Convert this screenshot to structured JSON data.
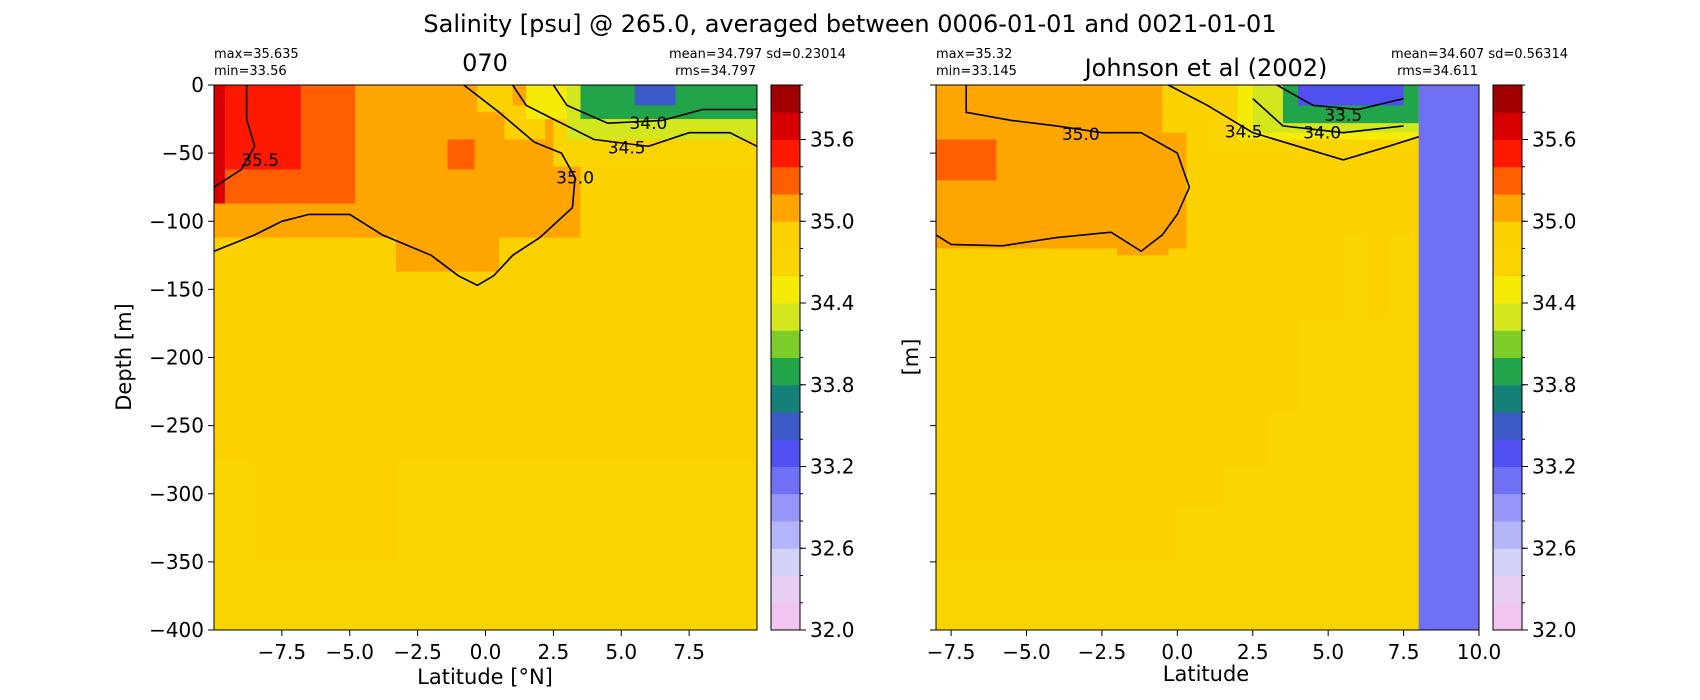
{
  "figure": {
    "suptitle": "Salinity [psu] @ 265.0, averaged between 0006-01-01 and 0021-01-01"
  },
  "colorbar": {
    "levels": [
      32.0,
      32.2,
      32.4,
      32.6,
      32.8,
      33.0,
      33.2,
      33.4,
      33.6,
      33.8,
      34.0,
      34.2,
      34.4,
      34.6,
      34.8,
      35.0,
      35.2,
      35.4,
      35.6,
      35.8,
      36.0
    ],
    "colors": [
      "#f2c4f2",
      "#e6cff2",
      "#d2d2f8",
      "#b4b4f8",
      "#9696f8",
      "#7070f5",
      "#5050f0",
      "#3c5ac8",
      "#148078",
      "#21a44a",
      "#7ccd29",
      "#d3e61e",
      "#f5eb05",
      "#fad400",
      "#fbd100",
      "#ffa500",
      "#ff5f00",
      "#ff1800",
      "#d80000",
      "#a00000",
      "#6e0000"
    ],
    "tick_labels": [
      "32.0",
      "32.6",
      "33.2",
      "33.8",
      "34.4",
      "35.0",
      "35.6"
    ],
    "tick_values": [
      32.0,
      32.6,
      33.2,
      33.8,
      34.4,
      35.0,
      35.6
    ]
  },
  "chart_data": [
    {
      "type": "heatmap",
      "title": "070",
      "stats_left": [
        "max=35.635",
        "min=33.56"
      ],
      "stats_right": [
        "mean=34.797 sd=0.23014",
        "rms=34.797"
      ],
      "xlabel": "Latitude [°N]",
      "ylabel": "Depth [m]",
      "xlim": [
        -10.0,
        10.0
      ],
      "ylim": [
        -400,
        0
      ],
      "x_ticks": [
        -7.5,
        -5.0,
        -2.5,
        0.0,
        2.5,
        5.0,
        7.5
      ],
      "x_tick_labels": [
        "−7.5",
        "−5.0",
        "−2.5",
        "0.0",
        "2.5",
        "5.0",
        "7.5"
      ],
      "y_ticks": [
        0,
        -50,
        -100,
        -150,
        -200,
        -250,
        -300,
        -350,
        -400
      ],
      "y_tick_labels": [
        "0",
        "−50",
        "−100",
        "−150",
        "−200",
        "−250",
        "−300",
        "−350",
        "−400"
      ],
      "background_value": 34.7,
      "regions": [
        {
          "x": [
            -10.0,
            10.0
          ],
          "y": [
            -275,
            0
          ],
          "value": 34.9
        },
        {
          "x": [
            -8.5,
            -3.3
          ],
          "y": [
            -350,
            -275
          ],
          "value": 34.9
        },
        {
          "x": [
            -10.0,
            3.5
          ],
          "y": [
            -112,
            0
          ],
          "value": 35.1
        },
        {
          "x": [
            -3.3,
            0.5
          ],
          "y": [
            -137,
            -112
          ],
          "value": 35.1
        },
        {
          "x": [
            -0.3,
            1.0
          ],
          "y": [
            -20,
            0
          ],
          "value": 34.9
        },
        {
          "x": [
            0.7,
            2.2
          ],
          "y": [
            -40,
            -15
          ],
          "value": 34.9
        },
        {
          "x": [
            -10.0,
            -4.8
          ],
          "y": [
            -87,
            0
          ],
          "value": 35.3
        },
        {
          "x": [
            -1.4,
            -0.4
          ],
          "y": [
            -62,
            -40
          ],
          "value": 35.3
        },
        {
          "x": [
            -10.0,
            -6.8
          ],
          "y": [
            -62,
            0
          ],
          "value": 35.5
        },
        {
          "x": [
            -10.0,
            -9.6
          ],
          "y": [
            -87,
            0
          ],
          "value": 35.7
        },
        {
          "x": [
            2.5,
            10.0
          ],
          "y": [
            -60,
            0
          ],
          "value": 34.7
        },
        {
          "x": [
            1.5,
            3.0
          ],
          "y": [
            -25,
            0
          ],
          "value": 34.5
        },
        {
          "x": [
            3.0,
            10.0
          ],
          "y": [
            -40,
            0
          ],
          "value": 34.2
        },
        {
          "x": [
            3.5,
            10.0
          ],
          "y": [
            -25,
            0
          ],
          "value": 33.9
        },
        {
          "x": [
            5.5,
            7.0
          ],
          "y": [
            -15,
            0
          ],
          "value": 33.5
        }
      ],
      "contours": [
        {
          "label": "35.5",
          "label_at": [
            -8.3,
            -55
          ],
          "points": [
            [
              -8.8,
              0
            ],
            [
              -8.8,
              -25
            ],
            [
              -8.5,
              -45
            ],
            [
              -9.0,
              -62
            ],
            [
              -10.0,
              -75
            ]
          ]
        },
        {
          "label": "35.0",
          "label_at": [
            3.3,
            -68
          ],
          "points": [
            [
              -0.8,
              0
            ],
            [
              0.5,
              -20
            ],
            [
              1.8,
              -42
            ],
            [
              2.8,
              -50
            ],
            [
              3.3,
              -68
            ],
            [
              3.2,
              -90
            ],
            [
              2.0,
              -112
            ],
            [
              1.0,
              -125
            ],
            [
              0.3,
              -140
            ],
            [
              -0.3,
              -147
            ],
            [
              -1.0,
              -140
            ],
            [
              -2.0,
              -125
            ],
            [
              -3.8,
              -110
            ],
            [
              -5.0,
              -95
            ],
            [
              -6.5,
              -95
            ],
            [
              -7.5,
              -100
            ],
            [
              -8.5,
              -110
            ],
            [
              -10.0,
              -122
            ]
          ]
        },
        {
          "label": "34.5",
          "label_at": [
            5.2,
            -46
          ],
          "points": [
            [
              1.0,
              0
            ],
            [
              1.5,
              -15
            ],
            [
              2.5,
              -25
            ],
            [
              4.0,
              -40
            ],
            [
              6.0,
              -45
            ],
            [
              7.5,
              -35
            ],
            [
              9.0,
              -35
            ],
            [
              10.0,
              -45
            ]
          ]
        },
        {
          "label": "34.0",
          "label_at": [
            6.0,
            -28
          ],
          "points": [
            [
              2.5,
              0
            ],
            [
              3.0,
              -15
            ],
            [
              4.5,
              -28
            ],
            [
              6.5,
              -26
            ],
            [
              8.0,
              -18
            ],
            [
              10.0,
              -18
            ]
          ]
        }
      ]
    },
    {
      "type": "heatmap",
      "title": "Johnson et al (2002)",
      "stats_left": [
        "max=35.32",
        "min=33.145"
      ],
      "stats_right": [
        "mean=34.607 sd=0.56314",
        "rms=34.611"
      ],
      "xlabel": "Latitude",
      "ylabel": "[m]",
      "xlim": [
        -8.0,
        10.0
      ],
      "ylim": [
        -400,
        0
      ],
      "x_ticks": [
        -7.5,
        -5.0,
        -2.5,
        0.0,
        2.5,
        5.0,
        7.5,
        10.0
      ],
      "x_tick_labels": [
        "−7.5",
        "−5.0",
        "−2.5",
        "0.0",
        "2.5",
        "5.0",
        "7.5",
        "10.0"
      ],
      "y_ticks": [
        0,
        -50,
        -100,
        -150,
        -200,
        -250,
        -300,
        -350,
        -400
      ],
      "background_value": 34.7,
      "regions": [
        {
          "x": [
            -8.0,
            8.0
          ],
          "y": [
            -400,
            0
          ],
          "value": 34.7
        },
        {
          "x": [
            -8.0,
            0.0
          ],
          "y": [
            -350,
            0
          ],
          "value": 34.9
        },
        {
          "x": [
            0.0,
            1.5
          ],
          "y": [
            -310,
            0
          ],
          "value": 34.9
        },
        {
          "x": [
            1.5,
            3.0
          ],
          "y": [
            -280,
            0
          ],
          "value": 34.9
        },
        {
          "x": [
            3.0,
            4.0
          ],
          "y": [
            -240,
            0
          ],
          "value": 34.9
        },
        {
          "x": [
            4.0,
            5.5
          ],
          "y": [
            -170,
            0
          ],
          "value": 34.9
        },
        {
          "x": [
            5.5,
            6.3
          ],
          "y": [
            -110,
            0
          ],
          "value": 34.9
        },
        {
          "x": [
            6.3,
            7.0
          ],
          "y": [
            -170,
            0
          ],
          "value": 34.9
        },
        {
          "x": [
            7.0,
            8.0
          ],
          "y": [
            -110,
            0
          ],
          "value": 34.9
        },
        {
          "x": [
            -8.0,
            0.3
          ],
          "y": [
            -120,
            0
          ],
          "value": 35.1
        },
        {
          "x": [
            -2.0,
            -0.3
          ],
          "y": [
            -125,
            -110
          ],
          "value": 35.1
        },
        {
          "x": [
            -8.0,
            -6.0
          ],
          "y": [
            -70,
            -40
          ],
          "value": 35.3
        },
        {
          "x": [
            -0.5,
            8.0
          ],
          "y": [
            -35,
            0
          ],
          "value": 34.9
        },
        {
          "x": [
            1.0,
            8.0
          ],
          "y": [
            -50,
            -25
          ],
          "value": 34.7
        },
        {
          "x": [
            2.0,
            8.0
          ],
          "y": [
            -40,
            0
          ],
          "value": 34.5
        },
        {
          "x": [
            2.5,
            8.0
          ],
          "y": [
            -35,
            0
          ],
          "value": 34.2
        },
        {
          "x": [
            3.5,
            8.0
          ],
          "y": [
            -28,
            0
          ],
          "value": 33.9
        },
        {
          "x": [
            4.0,
            7.5
          ],
          "y": [
            -15,
            0
          ],
          "value": 33.3
        },
        {
          "x": [
            8.0,
            10.0
          ],
          "y": [
            -400,
            0
          ],
          "value": 33.1
        }
      ],
      "contours": [
        {
          "label": "35.0",
          "label_at": [
            -3.2,
            -36
          ],
          "points": [
            [
              -7.0,
              0
            ],
            [
              -7.0,
              -20
            ],
            [
              -5.5,
              -26
            ],
            [
              -4.0,
              -30
            ],
            [
              -2.5,
              -35
            ],
            [
              -1.2,
              -35
            ],
            [
              0.0,
              -50
            ],
            [
              0.4,
              -75
            ],
            [
              0.0,
              -95
            ],
            [
              -0.5,
              -110
            ],
            [
              -1.2,
              -122
            ],
            [
              -2.2,
              -108
            ],
            [
              -4.0,
              -112
            ],
            [
              -5.8,
              -118
            ],
            [
              -7.5,
              -117
            ],
            [
              -8.0,
              -110
            ]
          ]
        },
        {
          "label": "34.5",
          "label_at": [
            2.2,
            -34
          ],
          "points": [
            [
              -0.3,
              0
            ],
            [
              1.0,
              -15
            ],
            [
              2.5,
              -35
            ],
            [
              4.0,
              -45
            ],
            [
              5.5,
              -55
            ],
            [
              7.0,
              -45
            ],
            [
              8.0,
              -38
            ]
          ]
        },
        {
          "label": "34.0",
          "label_at": [
            4.8,
            -35
          ],
          "points": [
            [
              2.5,
              -10
            ],
            [
              3.5,
              -30
            ],
            [
              5.5,
              -35
            ],
            [
              7.5,
              -30
            ]
          ]
        },
        {
          "label": "33.5",
          "label_at": [
            5.5,
            -22
          ],
          "points": [
            [
              3.3,
              0
            ],
            [
              4.5,
              -15
            ],
            [
              6.0,
              -18
            ],
            [
              7.5,
              -10
            ]
          ]
        }
      ]
    }
  ]
}
